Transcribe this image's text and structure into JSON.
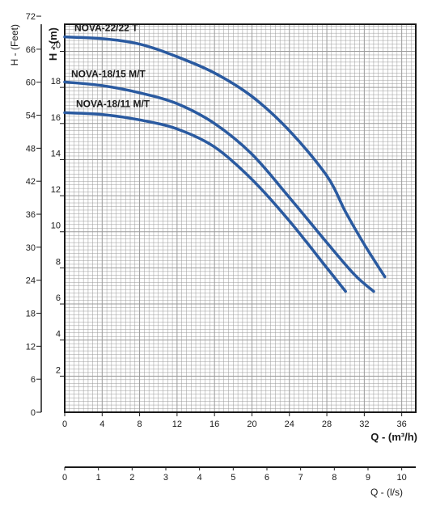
{
  "chart_data": {
    "type": "line",
    "xlabel": "Q - (m³/h)",
    "ylabel": "H - (m)",
    "y2label": "H - (Feet)",
    "x2label": "Q - (l/s)",
    "xlim": [
      0,
      37.5
    ],
    "ylim": [
      0,
      21.5
    ],
    "x_ticks": [
      "0",
      "4",
      "8",
      "12",
      "16",
      "20",
      "24",
      "28",
      "32",
      "36"
    ],
    "y_ticks": [
      "2",
      "4",
      "6",
      "8",
      "10",
      "12",
      "14",
      "16",
      "18",
      "20"
    ],
    "y_feet_ticks": [
      "0",
      "6",
      "12",
      "18",
      "24",
      "30",
      "36",
      "42",
      "48",
      "54",
      "60",
      "66",
      "72"
    ],
    "x_ls_ticks": [
      "0",
      "1",
      "2",
      "3",
      "4",
      "5",
      "6",
      "7",
      "8",
      "9",
      "10"
    ],
    "grid": true,
    "colors": {
      "curve": "#2a5aa0",
      "grid": "#9a9a9a",
      "axis": "#1a1a1a"
    },
    "series": [
      {
        "name": "NOVA-22/22 T",
        "x": [
          0,
          4,
          8,
          12,
          16,
          20,
          24,
          28,
          30,
          32,
          34.2
        ],
        "y": [
          20.8,
          20.7,
          20.4,
          19.7,
          18.8,
          17.5,
          15.6,
          13.1,
          11.1,
          9.3,
          7.5
        ]
      },
      {
        "name": "NOVA-18/15 M/T",
        "x": [
          0,
          4,
          8,
          12,
          16,
          20,
          24,
          28,
          31,
          33
        ],
        "y": [
          18.3,
          18.1,
          17.7,
          17.1,
          16.0,
          14.3,
          11.9,
          9.4,
          7.6,
          6.7
        ]
      },
      {
        "name": "NOVA-18/11 M/T",
        "x": [
          0,
          4,
          8,
          12,
          16,
          20,
          24,
          28,
          30
        ],
        "y": [
          16.6,
          16.5,
          16.2,
          15.7,
          14.7,
          12.9,
          10.6,
          8.0,
          6.7
        ]
      }
    ]
  }
}
